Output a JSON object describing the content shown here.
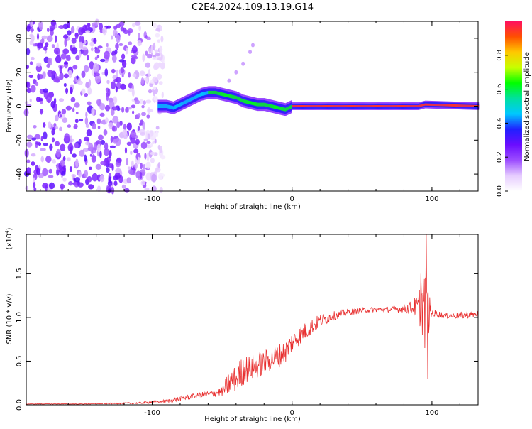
{
  "figure_title": "C2E4.2024.109.13.19.G14",
  "colorbar": {
    "label": "Normalized spectral amplitude",
    "ticks": [
      "0.0",
      "0.2",
      "0.4",
      "0.6",
      "0.8"
    ],
    "tick_values": [
      0.0,
      0.2,
      0.4,
      0.6,
      0.8
    ],
    "range": [
      0,
      1
    ],
    "colors": [
      "#ffffff",
      "#e6ccff",
      "#9c4dff",
      "#6a0dff",
      "#2020ff",
      "#00c8ff",
      "#00e0a0",
      "#00ff00",
      "#c8ff00",
      "#ffc800",
      "#ff5000",
      "#ff1060"
    ]
  },
  "chart_data": [
    {
      "type": "heatmap",
      "title": "",
      "xlabel": "Height of straight line (km)",
      "ylabel": "Frequency (Hz)",
      "xlim": [
        -190,
        133
      ],
      "ylim": [
        -50,
        50
      ],
      "x_ticks": [
        -100,
        0,
        100
      ],
      "y_ticks": [
        -40,
        -20,
        0,
        20,
        40
      ],
      "x_tick_labels": [
        "-100",
        "0",
        "100"
      ],
      "y_tick_labels": [
        "-40",
        "-20",
        "0",
        "20",
        "40"
      ],
      "ridge": {
        "x": [
          -96,
          -90,
          -85,
          -80,
          -75,
          -70,
          -65,
          -60,
          -55,
          -50,
          -45,
          -40,
          -35,
          -30,
          -25,
          -20,
          -15,
          -10,
          -5,
          0,
          10,
          30,
          60,
          90,
          95,
          133
        ],
        "y": [
          0,
          0,
          -1,
          1,
          3,
          5,
          7,
          8,
          8,
          7,
          6,
          5,
          3,
          2,
          1,
          1,
          0,
          -1,
          -2,
          0,
          0,
          0,
          0,
          0,
          1,
          0
        ]
      },
      "faint_branch": {
        "x": [
          -45,
          -40,
          -35,
          -30,
          -28
        ],
        "y": [
          15,
          20,
          25,
          32,
          36
        ]
      },
      "noise_region_x": [
        -190,
        -92
      ]
    },
    {
      "type": "line",
      "title": "",
      "xlabel": "Height of straight line (km)",
      "ylabel": "SNR (10 * v/v)",
      "multiplier": "(x10",
      "multiplier_exp": "4",
      "multiplier_close": ")",
      "xlim": [
        -190,
        133
      ],
      "ylim": [
        0,
        1.95
      ],
      "x_ticks": [
        -100,
        0,
        100
      ],
      "y_ticks": [
        0.0,
        0.5,
        1.0,
        1.5
      ],
      "x_tick_labels": [
        "-100",
        "0",
        "100"
      ],
      "y_tick_labels": [
        "0.0",
        "0.5",
        "1.0",
        "1.5"
      ],
      "series_color": "#e83030",
      "envelope": {
        "x": [
          -190,
          -150,
          -110,
          -90,
          -80,
          -70,
          -60,
          -50,
          -45,
          -40,
          -35,
          -30,
          -25,
          -20,
          -15,
          -10,
          -5,
          0,
          10,
          20,
          30,
          40,
          50,
          60,
          70,
          80,
          85,
          90,
          93,
          95,
          97,
          100,
          110,
          120,
          133
        ],
        "mean": [
          0.01,
          0.01,
          0.02,
          0.04,
          0.07,
          0.1,
          0.12,
          0.15,
          0.25,
          0.3,
          0.4,
          0.42,
          0.45,
          0.48,
          0.52,
          0.56,
          0.6,
          0.72,
          0.85,
          0.96,
          1.02,
          1.06,
          1.08,
          1.09,
          1.09,
          1.1,
          1.11,
          1.12,
          1.15,
          1.1,
          1.05,
          1.05,
          1.02,
          1.02,
          1.04
        ],
        "noise": [
          0.003,
          0.004,
          0.01,
          0.02,
          0.03,
          0.03,
          0.04,
          0.05,
          0.15,
          0.15,
          0.18,
          0.15,
          0.15,
          0.14,
          0.14,
          0.14,
          0.13,
          0.12,
          0.1,
          0.08,
          0.05,
          0.04,
          0.03,
          0.03,
          0.03,
          0.05,
          0.08,
          0.15,
          0.35,
          0.45,
          0.3,
          0.05,
          0.03,
          0.04,
          0.04
        ]
      },
      "peaks": [
        {
          "x": 96,
          "y": 1.95
        },
        {
          "x": 97,
          "y": 0.3
        },
        {
          "x": 92,
          "y": 1.5
        },
        {
          "x": 95,
          "y": 0.65
        }
      ]
    }
  ]
}
